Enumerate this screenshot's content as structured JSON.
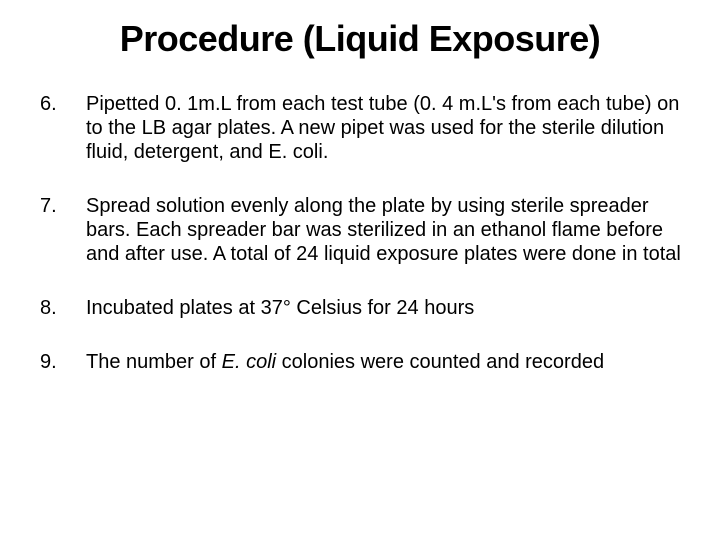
{
  "title": "Procedure (Liquid Exposure)",
  "title_fontsize": 36,
  "title_fontweight": "bold",
  "body_fontsize": 20,
  "text_color": "#000000",
  "background_color": "#ffffff",
  "list_start": 6,
  "items": [
    {
      "marker": "6.",
      "html": "Pipetted 0. 1m.L from each test tube (0. 4 m.L's from each tube) on to the LB agar plates. A new pipet was used for the sterile dilution fluid, detergent, and E. coli."
    },
    {
      "marker": "7.",
      "html": "Spread solution evenly along the plate by using sterile spreader bars. Each spreader bar was sterilized in an ethanol flame before and after use. A total of 24 liquid exposure plates were done in total"
    },
    {
      "marker": "8.",
      "html": "Incubated plates at 37° Celsius for 24 hours"
    },
    {
      "marker": "9.",
      "html": "The number of <em>E. coli</em> colonies were counted and recorded"
    }
  ]
}
